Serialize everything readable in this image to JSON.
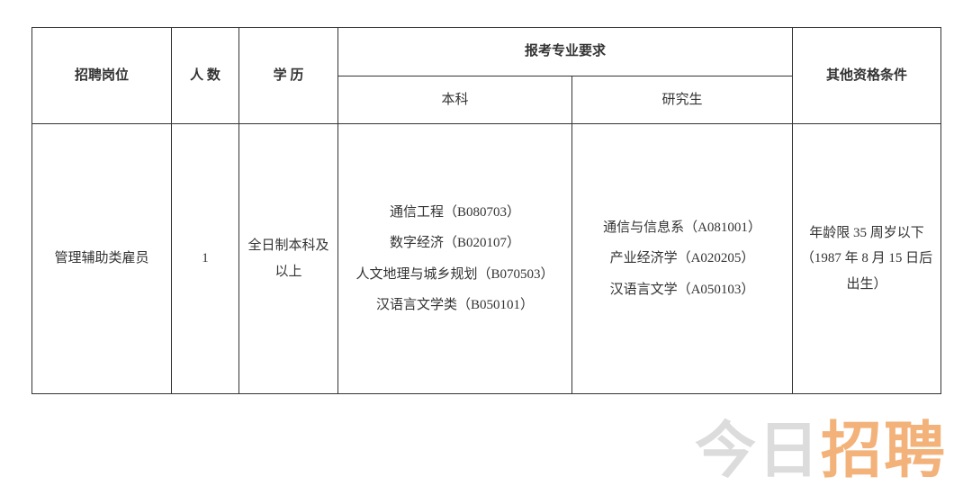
{
  "table": {
    "headers": {
      "position": "招聘岗位",
      "people": "人 数",
      "education": "学 历",
      "majorRequirement": "报考专业要求",
      "bachelor": "本科",
      "graduate": "研究生",
      "otherQual": "其他资格条件"
    },
    "row": {
      "position": "管理辅助类雇员",
      "people": "1",
      "education": "全日制本科及以上",
      "bachelor": "通信工程（B080703）\n数字经济（B020107）\n人文地理与城乡规划（B070503）\n汉语言文学类（B050101）",
      "graduate": "通信与信息系（A081001）\n产业经济学（A020205）\n汉语言文学（A050103）",
      "otherQual": "年龄限 35 周岁以下（1987 年 8 月 15 日后出生）"
    },
    "colors": {
      "border": "#333333",
      "text": "#333333",
      "background": "#ffffff"
    },
    "font": {
      "family": "SimSun",
      "size": 15
    }
  },
  "watermark": {
    "part1": "今日",
    "part2": "招聘",
    "color1": "#dcdcdc",
    "color2": "#f2b27a",
    "fontSize": 68
  }
}
